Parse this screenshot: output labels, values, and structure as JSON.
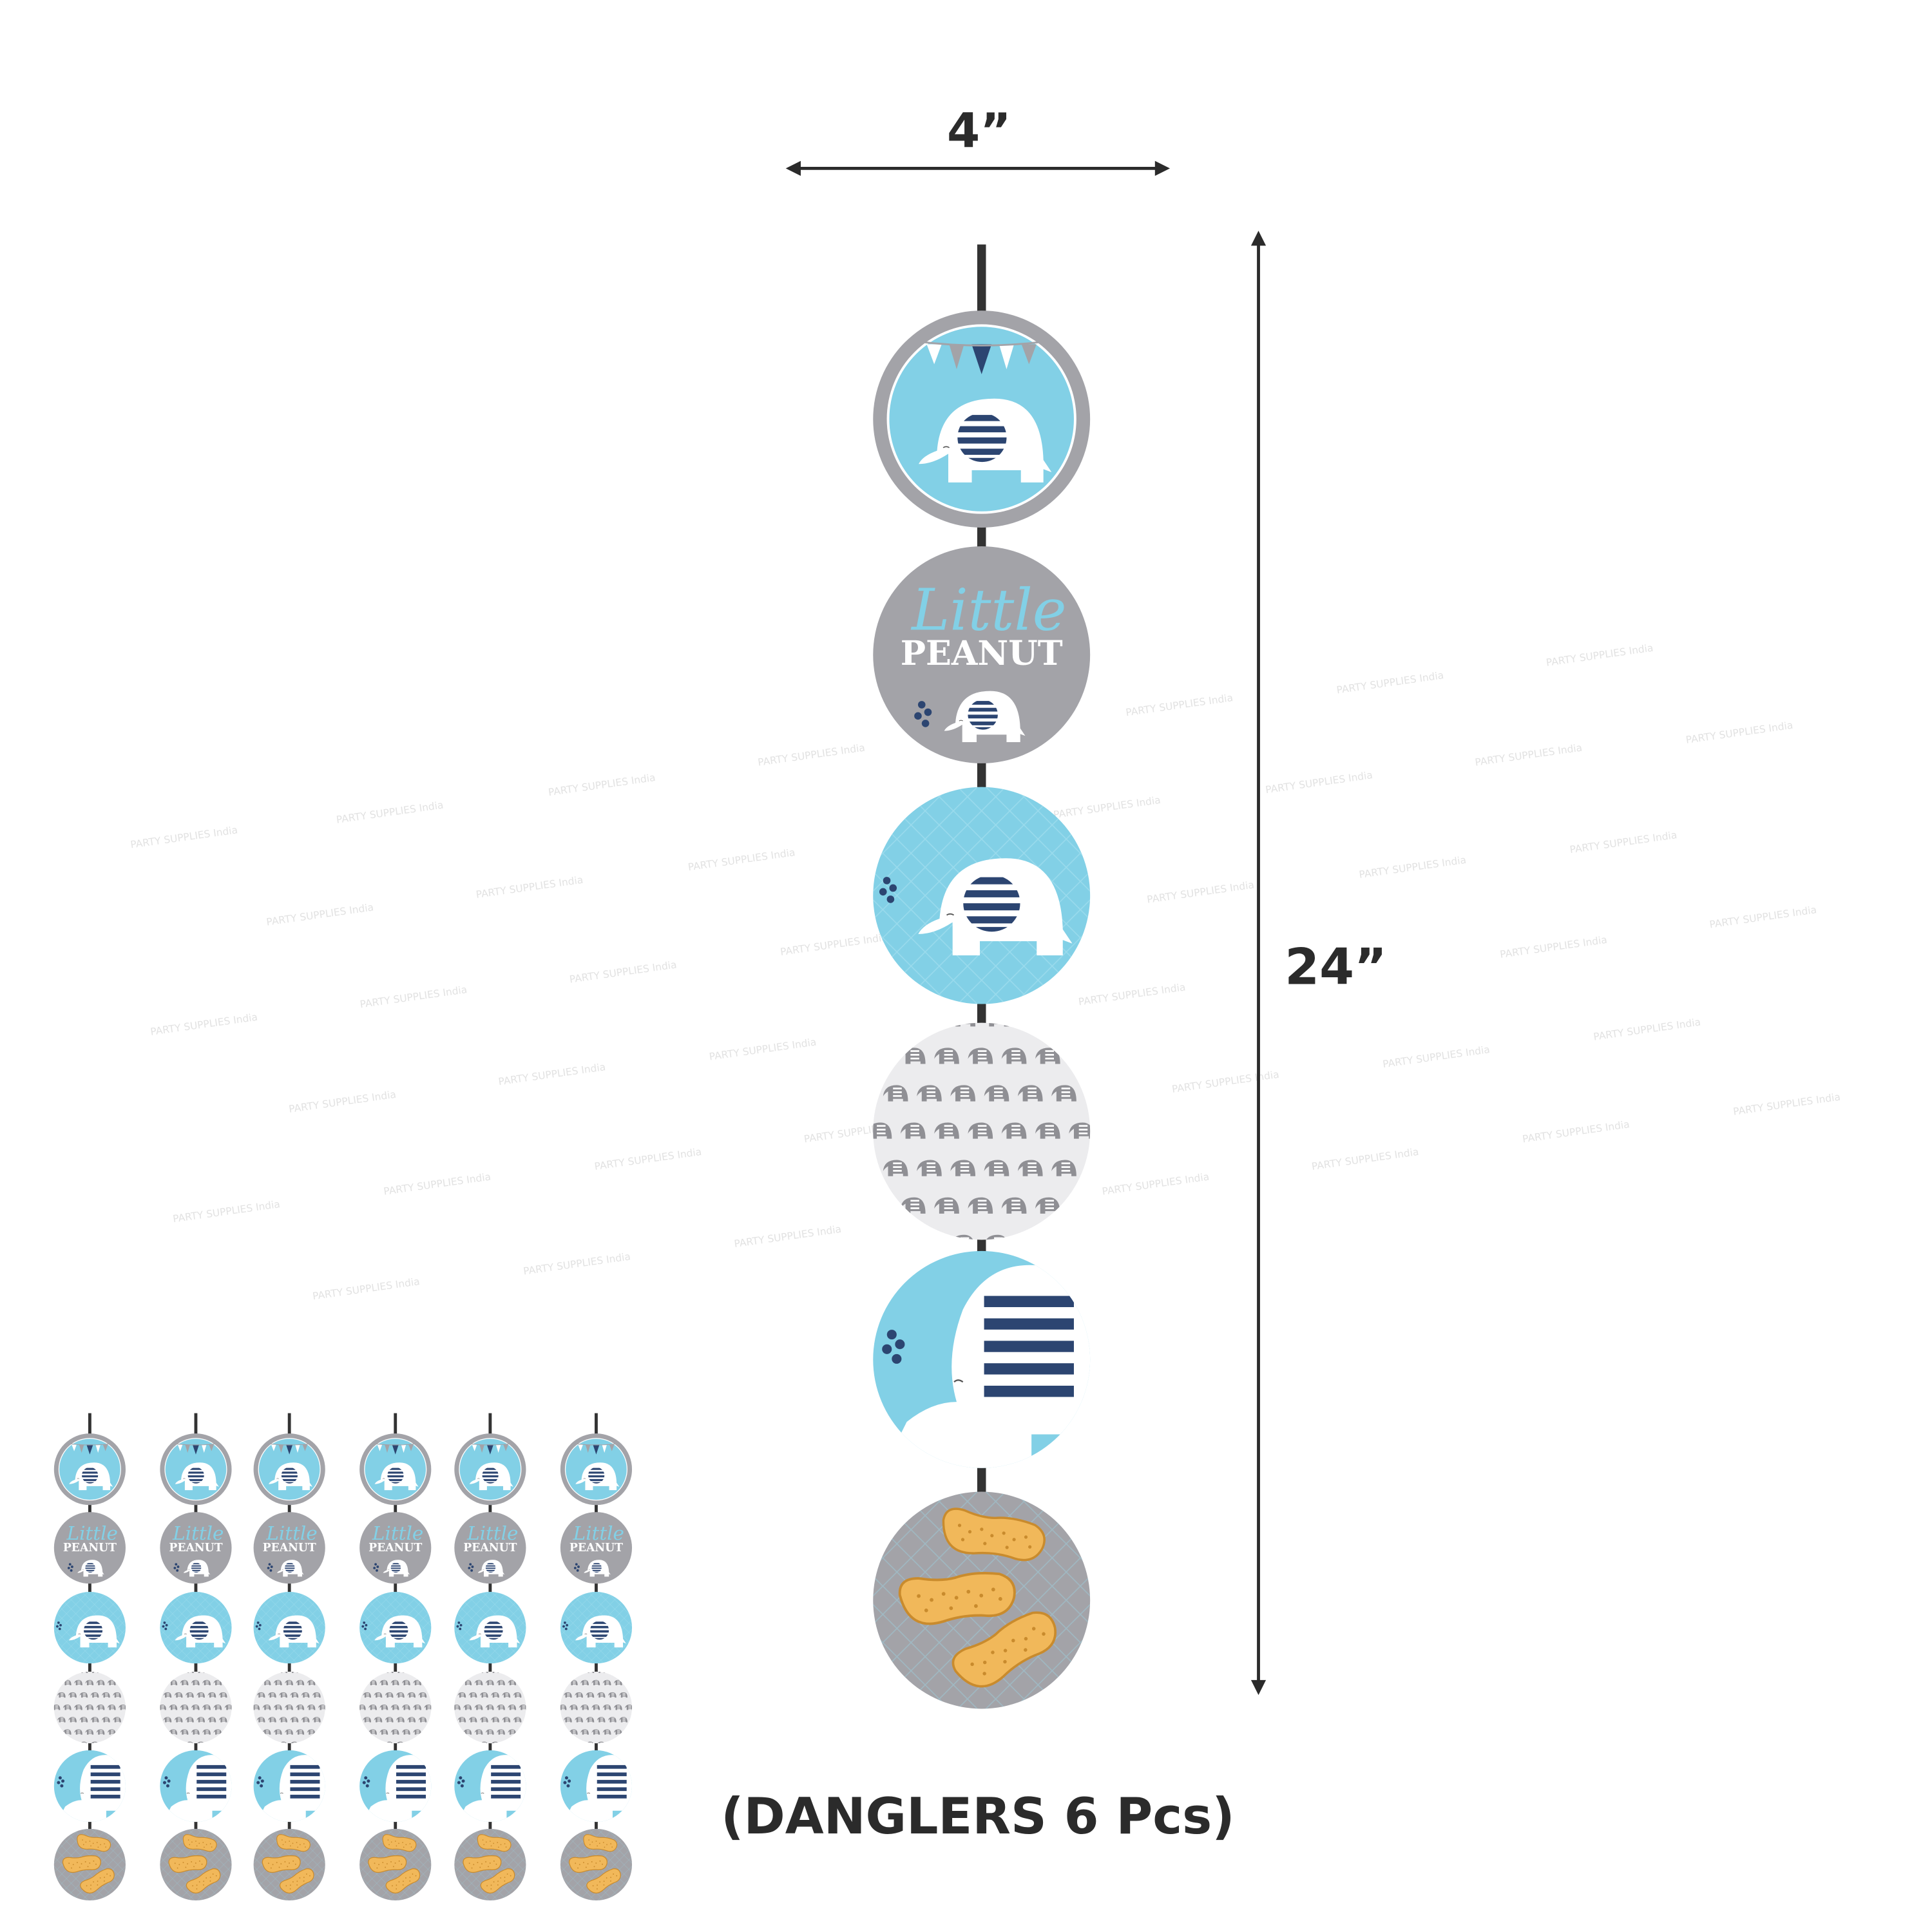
{
  "dimensions": {
    "width_label": "4”",
    "height_label": "24”"
  },
  "caption": "(DANGLERS 6 Pcs)",
  "watermark": "PARTY SUPPLIES India",
  "dangler": {
    "pieces": [
      {
        "design": "bunting-elephant"
      },
      {
        "design": "little-peanut",
        "script_text": "Little",
        "bold_text": "PEANUT"
      },
      {
        "design": "blue-elephant"
      },
      {
        "design": "elephant-pattern"
      },
      {
        "design": "large-elephant"
      },
      {
        "design": "peanuts"
      }
    ]
  },
  "set_preview": {
    "strand_count": 6
  },
  "colors": {
    "sky_blue": "#82d0e6",
    "gray": "#a3a3a8",
    "navy": "#2c4571",
    "light_gray": "#ececee",
    "peanut": "#f1b85a",
    "string": "#333333"
  }
}
